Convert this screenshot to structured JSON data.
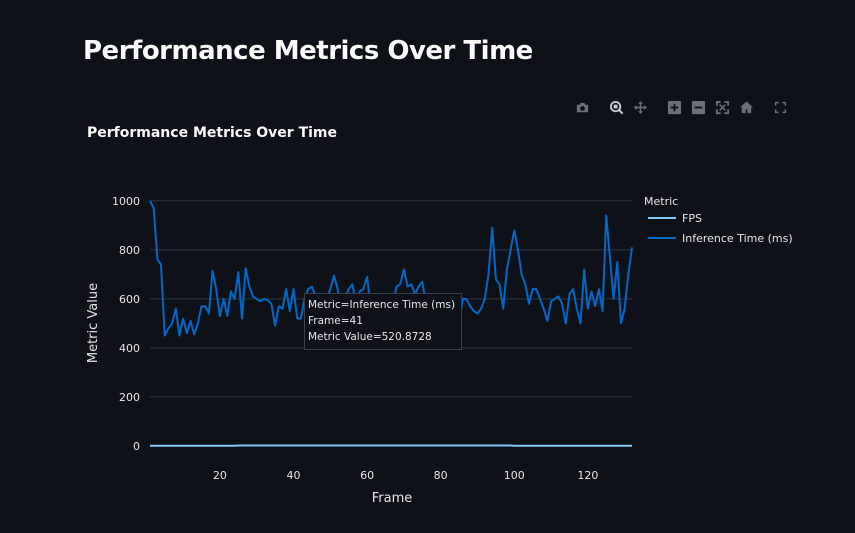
{
  "page": {
    "title": "Performance Metrics Over Time"
  },
  "modebar": [
    "camera-icon",
    "zoom-icon",
    "pan-icon",
    "zoom-in-icon",
    "zoom-out-icon",
    "autoscale-icon",
    "home-icon",
    "fullscreen-icon"
  ],
  "chart_data": {
    "type": "line",
    "title": "Performance Metrics Over Time",
    "xlabel": "Frame",
    "ylabel": "Metric Value",
    "xlim": [
      1,
      132
    ],
    "ylim": [
      -45,
      1040
    ],
    "x_ticks": [
      20,
      40,
      60,
      80,
      100,
      120
    ],
    "y_ticks": [
      0,
      200,
      400,
      600,
      800,
      1000
    ],
    "grid": true,
    "legend": {
      "title": "Metric",
      "position": "right"
    },
    "series": [
      {
        "name": "FPS",
        "color": "#83c9ff",
        "x_start": 1,
        "values": [
          1,
          1,
          1,
          1,
          1,
          1,
          1,
          1,
          1,
          1,
          1,
          1,
          1,
          1,
          1,
          1,
          1,
          1,
          1,
          1,
          1,
          1,
          1,
          1,
          2,
          2,
          2,
          2,
          2,
          2,
          2,
          2,
          2,
          2,
          2,
          2,
          2,
          2,
          2,
          2,
          2,
          2,
          2,
          2,
          2,
          2,
          2,
          2,
          2,
          2,
          2,
          2,
          2,
          2,
          2,
          2,
          2,
          2,
          2,
          2,
          2,
          2,
          2,
          2,
          2,
          2,
          2,
          2,
          2,
          2,
          2,
          2,
          2,
          2,
          2,
          2,
          2,
          2,
          2,
          2,
          2,
          2,
          2,
          2,
          2,
          2,
          2,
          2,
          2,
          2,
          2,
          2,
          2,
          2,
          2,
          2,
          2,
          2,
          2,
          1,
          1,
          1,
          1,
          1,
          1,
          1,
          1,
          1,
          1,
          1,
          1,
          1,
          1,
          1,
          1,
          1,
          1,
          1,
          1,
          1,
          1,
          1,
          1,
          1,
          1,
          1,
          1,
          1,
          1,
          1,
          1,
          1
        ]
      },
      {
        "name": "Inference Time (ms)",
        "color": "#0068c9",
        "x_start": 1,
        "values": [
          1000,
          970,
          760,
          740,
          450,
          480,
          500,
          560,
          450,
          520,
          460,
          510,
          455,
          500,
          570,
          570,
          540,
          715,
          640,
          530,
          600,
          530,
          630,
          600,
          710,
          520,
          725,
          650,
          610,
          600,
          590,
          600,
          595,
          580,
          490,
          570,
          560,
          640,
          550,
          640,
          520,
          520,
          600,
          640,
          650,
          610,
          600,
          530,
          600,
          640,
          695,
          640,
          560,
          600,
          640,
          660,
          580,
          630,
          640,
          690,
          560,
          600,
          570,
          600,
          560,
          540,
          580,
          650,
          660,
          720,
          650,
          660,
          620,
          650,
          670,
          580,
          590,
          600,
          570,
          610,
          560,
          540,
          600,
          480,
          500,
          600,
          600,
          570,
          550,
          540,
          560,
          600,
          700,
          890,
          680,
          660,
          560,
          720,
          800,
          880,
          800,
          700,
          660,
          580,
          640,
          640,
          600,
          560,
          510,
          590,
          600,
          610,
          580,
          500,
          620,
          640,
          560,
          500,
          720,
          560,
          630,
          570,
          640,
          550,
          940,
          770,
          600,
          750,
          500,
          560,
          700,
          810
        ]
      }
    ],
    "tooltip": {
      "metric_line": "Metric=Inference Time (ms)",
      "frame_line": "Frame=41",
      "value_line": "Metric Value=520.8728"
    }
  }
}
